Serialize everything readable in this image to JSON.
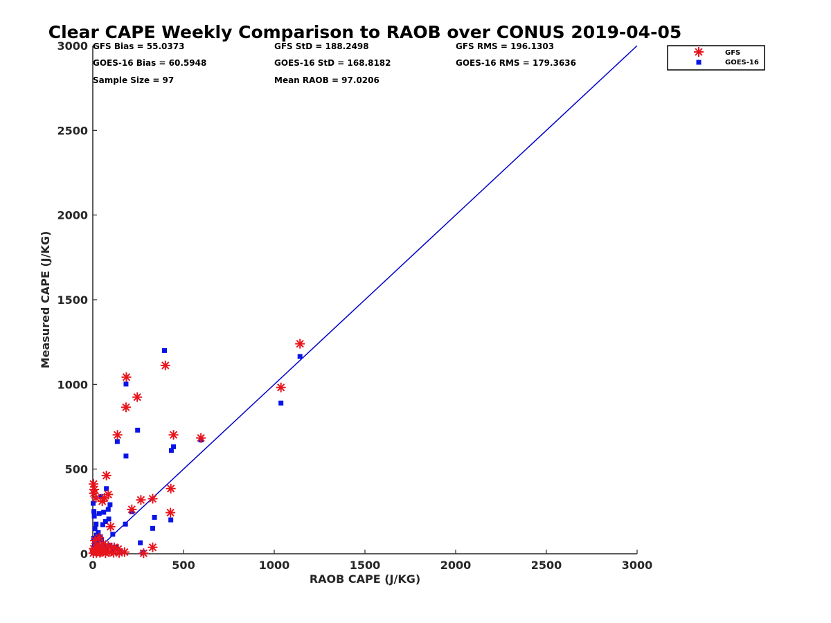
{
  "chart_data": {
    "type": "scatter",
    "title": "Clear CAPE Weekly Comparison to RAOB over CONUS 2019-04-05",
    "xlabel": "RAOB CAPE (J/KG)",
    "ylabel": "Measured CAPE (J/KG)",
    "xlim": [
      0,
      3000
    ],
    "ylim": [
      0,
      3000
    ],
    "xticks": [
      0,
      500,
      1000,
      1500,
      2000,
      2500,
      3000
    ],
    "yticks": [
      0,
      500,
      1000,
      1500,
      2000,
      2500,
      3000
    ],
    "legend_position": "top-right, outside plot",
    "reference_line": {
      "name": "1:1 line",
      "from": [
        0,
        0
      ],
      "to": [
        3000,
        3000
      ],
      "color": "#0000cc"
    },
    "stats": [
      "GFS Bias = 55.0373",
      "GOES-16 Bias = 60.5948",
      "Sample Size = 97",
      "GFS StD = 188.2498",
      "GOES-16 StD = 168.8182",
      "Mean RAOB = 97.0206",
      "GFS RMS = 196.1303",
      "GOES-16 RMS = 179.3636"
    ],
    "series": [
      {
        "name": "GFS",
        "marker": "asterisk",
        "color": "#e8141c",
        "points": [
          [
            1142,
            1240
          ],
          [
            1037,
            982
          ],
          [
            400,
            1112
          ],
          [
            185,
            1043
          ],
          [
            245,
            925
          ],
          [
            183,
            865
          ],
          [
            136,
            702
          ],
          [
            445,
            702
          ],
          [
            596,
            684
          ],
          [
            75,
            462
          ],
          [
            4,
            412
          ],
          [
            8,
            380
          ],
          [
            6,
            357
          ],
          [
            18,
            330
          ],
          [
            52,
            310
          ],
          [
            85,
            350
          ],
          [
            65,
            330
          ],
          [
            430,
            385
          ],
          [
            330,
            325
          ],
          [
            265,
            318
          ],
          [
            215,
            262
          ],
          [
            428,
            243
          ],
          [
            98,
            160
          ],
          [
            35,
            95
          ],
          [
            12,
            78
          ],
          [
            55,
            58
          ],
          [
            85,
            45
          ],
          [
            118,
            38
          ],
          [
            140,
            28
          ],
          [
            330,
            38
          ],
          [
            25,
            32
          ],
          [
            10,
            18
          ],
          [
            45,
            12
          ],
          [
            90,
            10
          ],
          [
            115,
            6
          ],
          [
            175,
            10
          ],
          [
            145,
            5
          ],
          [
            280,
            3
          ],
          [
            3,
            4
          ],
          [
            20,
            5
          ],
          [
            65,
            20
          ],
          [
            35,
            40
          ],
          [
            5,
            30
          ],
          [
            40,
            6
          ],
          [
            70,
            4
          ]
        ]
      },
      {
        "name": "GOES-16",
        "marker": "square",
        "color": "#0a14e6",
        "points": [
          [
            1142,
            1165
          ],
          [
            1037,
            890
          ],
          [
            395,
            1200
          ],
          [
            183,
            1002
          ],
          [
            135,
            663
          ],
          [
            247,
            730
          ],
          [
            183,
            577
          ],
          [
            445,
            632
          ],
          [
            433,
            610
          ],
          [
            596,
            672
          ],
          [
            75,
            385
          ],
          [
            45,
            338
          ],
          [
            2,
            298
          ],
          [
            6,
            250
          ],
          [
            8,
            222
          ],
          [
            35,
            238
          ],
          [
            60,
            245
          ],
          [
            85,
            262
          ],
          [
            95,
            290
          ],
          [
            88,
            205
          ],
          [
            215,
            248
          ],
          [
            180,
            175
          ],
          [
            340,
            215
          ],
          [
            430,
            200
          ],
          [
            330,
            150
          ],
          [
            110,
            115
          ],
          [
            262,
            65
          ],
          [
            70,
            190
          ],
          [
            55,
            172
          ],
          [
            12,
            148
          ],
          [
            20,
            110
          ],
          [
            30,
            125
          ],
          [
            48,
            80
          ],
          [
            5,
            92
          ],
          [
            10,
            62
          ],
          [
            25,
            58
          ],
          [
            40,
            40
          ],
          [
            60,
            48
          ],
          [
            75,
            35
          ],
          [
            95,
            50
          ],
          [
            125,
            40
          ],
          [
            150,
            12
          ],
          [
            5,
            25
          ],
          [
            15,
            10
          ],
          [
            35,
            15
          ],
          [
            55,
            8
          ],
          [
            2,
            5
          ],
          [
            80,
            12
          ],
          [
            110,
            20
          ],
          [
            275,
            8
          ],
          [
            8,
            38
          ],
          [
            22,
            80
          ],
          [
            42,
            100
          ],
          [
            18,
            175
          ]
        ]
      }
    ]
  }
}
